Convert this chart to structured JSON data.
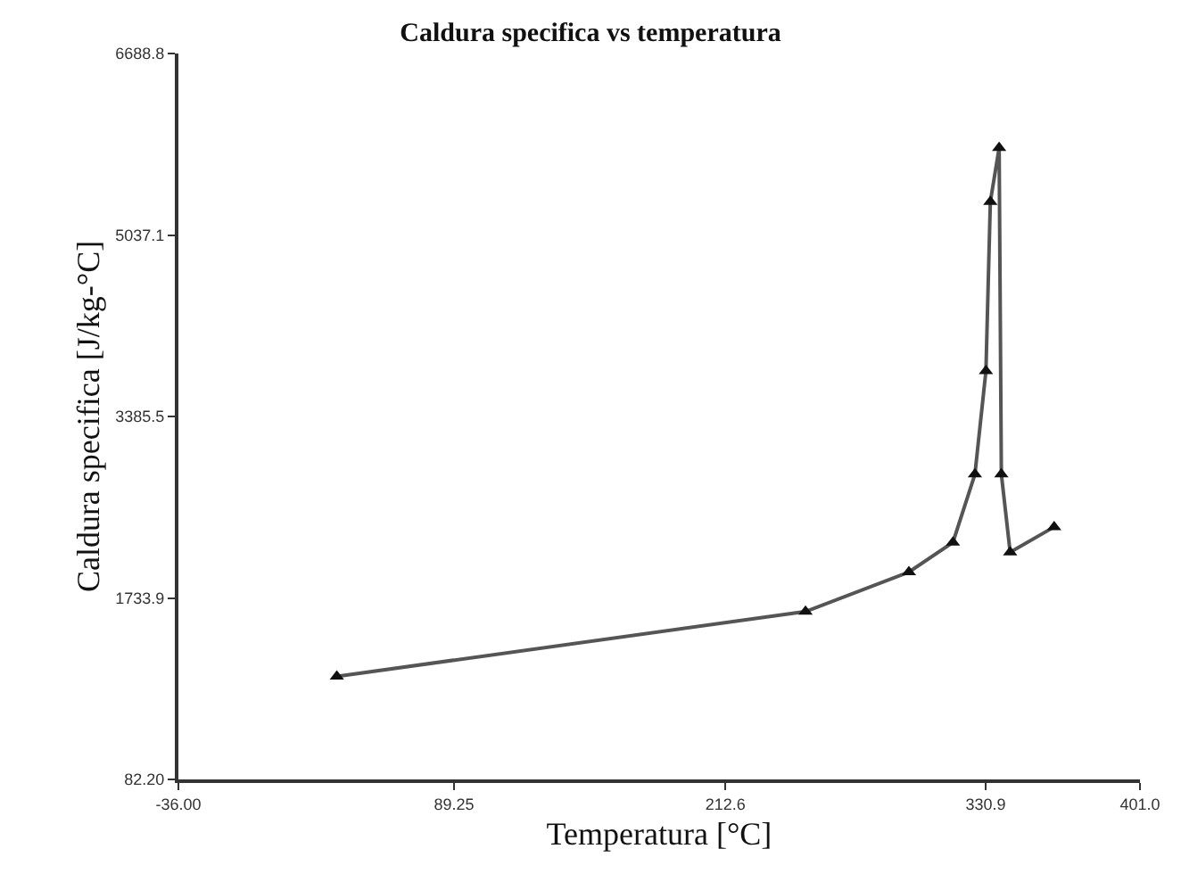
{
  "chart_data": {
    "type": "line",
    "title": "Caldura specifica vs temperatura",
    "xlabel": "Temperatura [°C]",
    "ylabel": "Caldura specifica [J/kg-°C]",
    "x": [
      36,
      249,
      296,
      316,
      326,
      331,
      333,
      337,
      338,
      342,
      362
    ],
    "series": [
      {
        "color": "#555555",
        "values": [
          1020,
          1610,
          1970,
          2240,
          2860,
          3800,
          5340,
          5830,
          2860,
          2150,
          2380
        ]
      }
    ],
    "xlim": [
      -36,
      401
    ],
    "xticks": [
      {
        "value": -36,
        "label": "-36.00"
      },
      89.25,
      212.6,
      330.9,
      {
        "value": 401,
        "label": "401.0"
      }
    ],
    "ylim": [
      82.2,
      6688.8
    ],
    "yticks": [
      {
        "value": 82.2,
        "label": "82.20"
      },
      1733.9,
      3385.5,
      5037.1,
      6688.8
    ],
    "marker": "triangle",
    "line_style": "solid",
    "legend": false
  }
}
